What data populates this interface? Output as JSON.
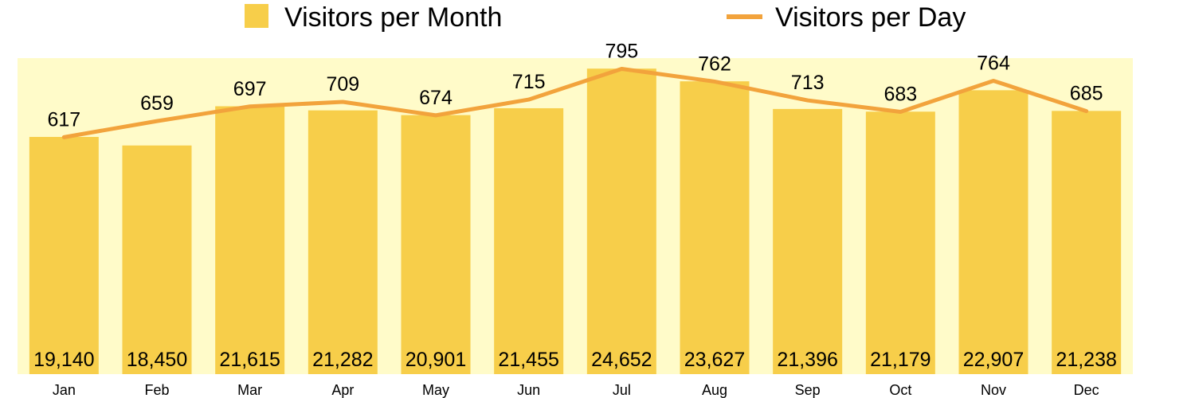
{
  "chart_data": {
    "type": "bar",
    "categories": [
      "Jan",
      "Feb",
      "Mar",
      "Apr",
      "May",
      "Jun",
      "Jul",
      "Aug",
      "Sep",
      "Oct",
      "Nov",
      "Dec"
    ],
    "series": [
      {
        "name": "Visitors per Month",
        "type": "bar",
        "values": [
          19140,
          18450,
          21615,
          21282,
          20901,
          21455,
          24652,
          23627,
          21396,
          21179,
          22907,
          21238
        ],
        "labels": [
          "19,140",
          "18,450",
          "21,615",
          "21,282",
          "20,901",
          "21,455",
          "24,652",
          "23,627",
          "21,396",
          "21,179",
          "22,907",
          "21,238"
        ]
      },
      {
        "name": "Visitors per Day",
        "type": "line",
        "values": [
          617,
          659,
          697,
          709,
          674,
          715,
          795,
          762,
          713,
          683,
          764,
          685
        ],
        "labels": [
          "617",
          "659",
          "697",
          "709",
          "674",
          "715",
          "795",
          "762",
          "713",
          "683",
          "764",
          "685"
        ]
      }
    ],
    "bar_ylim": [
      0,
      25500
    ],
    "line_ylim": [
      0,
      823
    ],
    "legend_position": "top",
    "grid": false,
    "colors": {
      "bar": "#F7CE4A",
      "line": "#F2A33C",
      "plot_background": "#FFFBC9"
    }
  }
}
